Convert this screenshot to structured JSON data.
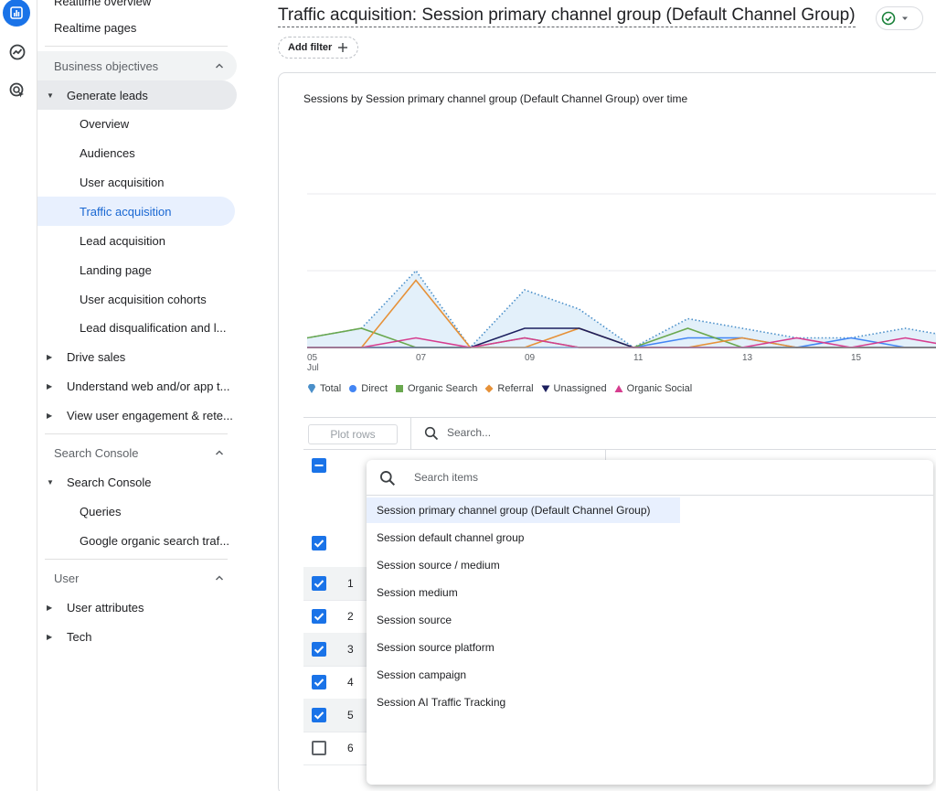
{
  "nav": {
    "partial_top": "Realtime overview",
    "realtime_pages": "Realtime pages",
    "business_objectives": "Business objectives",
    "generate_leads": "Generate leads",
    "generate_leads_children": [
      "Overview",
      "Audiences",
      "User acquisition",
      "Traffic acquisition",
      "Lead acquisition",
      "Landing page",
      "User acquisition cohorts",
      "Lead disqualification and l..."
    ],
    "drive_sales": "Drive sales",
    "understand": "Understand web and/or app t...",
    "engagement": "View user engagement & rete...",
    "search_console_section": "Search Console",
    "search_console": "Search Console",
    "search_console_children": [
      "Queries",
      "Google organic search traf..."
    ],
    "user_section": "User",
    "user_attributes": "User attributes",
    "tech": "Tech"
  },
  "header": {
    "title": "Traffic acquisition: Session primary channel group (Default Channel Group)",
    "add_filter": "Add filter"
  },
  "chart_data": {
    "type": "line",
    "title": "Sessions by Session primary channel group (Default Channel Group) over time",
    "x": [
      "05",
      "06",
      "07",
      "08",
      "09",
      "10",
      "11",
      "12",
      "13",
      "14",
      "15",
      "16",
      "17"
    ],
    "x_tick_labels": [
      "05",
      "07",
      "09",
      "11",
      "13",
      "15"
    ],
    "x_sublabel": "Jul",
    "ylim": [
      0,
      24
    ],
    "grid": true,
    "series": [
      {
        "name": "Total",
        "color": "#4a8fc9",
        "style": "dotted-area",
        "values": [
          1,
          2,
          8,
          0,
          6,
          4,
          0,
          3,
          2,
          1,
          1,
          2,
          1
        ]
      },
      {
        "name": "Direct",
        "color": "#4285f4",
        "values": [
          0,
          0,
          0,
          0,
          0,
          0,
          0,
          1,
          1,
          0,
          1,
          0,
          0
        ]
      },
      {
        "name": "Organic Search",
        "color": "#6aa84f",
        "values": [
          1,
          2,
          0,
          0,
          1,
          0,
          0,
          2,
          0,
          0,
          0,
          0,
          0
        ]
      },
      {
        "name": "Referral",
        "color": "#e69138",
        "values": [
          0,
          0,
          7,
          0,
          0,
          2,
          0,
          0,
          1,
          0,
          0,
          0,
          0
        ]
      },
      {
        "name": "Unassigned",
        "color": "#1c1f5e",
        "values": [
          0,
          0,
          0,
          0,
          2,
          2,
          0,
          0,
          0,
          0,
          0,
          0,
          0
        ]
      },
      {
        "name": "Organic Social",
        "color": "#d63d8f",
        "values": [
          0,
          0,
          1,
          0,
          1,
          0,
          0,
          0,
          0,
          1,
          0,
          1,
          0
        ]
      }
    ],
    "legend_position": "bottom-left"
  },
  "table": {
    "plot_rows": "Plot rows",
    "search_placeholder": "Search...",
    "rows": [
      {
        "num": "1",
        "checked": true
      },
      {
        "num": "2",
        "checked": true
      },
      {
        "num": "3",
        "checked": true
      },
      {
        "num": "4",
        "checked": true
      },
      {
        "num": "5",
        "checked": true
      },
      {
        "num": "6",
        "checked": false
      }
    ]
  },
  "dropdown": {
    "search_placeholder": "Search items",
    "items": [
      "Session primary channel group (Default Channel Group)",
      "Session default channel group",
      "Session source / medium",
      "Session medium",
      "Session source",
      "Session source platform",
      "Session campaign",
      "Session AI Traffic Tracking"
    ],
    "highlighted_index": 0
  }
}
